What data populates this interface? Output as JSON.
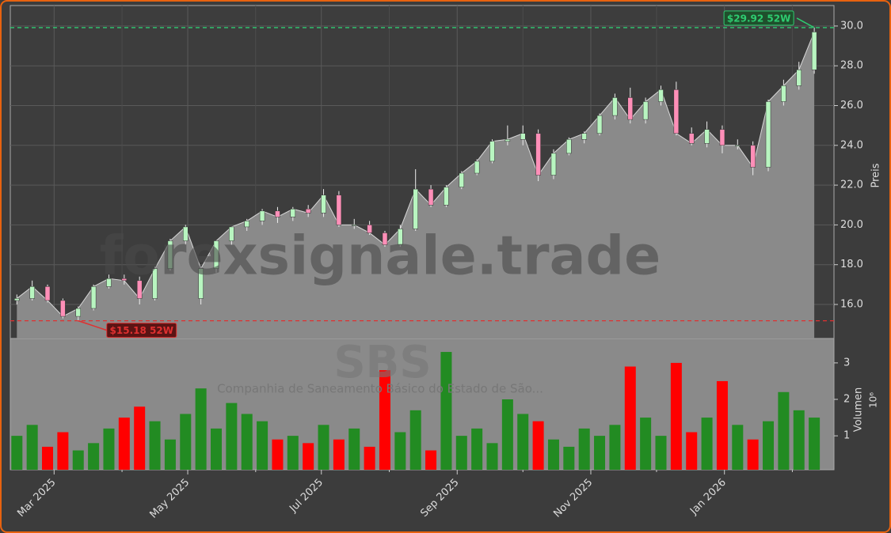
{
  "chart_data": {
    "type": "candlestick",
    "watermark": "forexsignale.trade",
    "symbol": "SBS",
    "company": "Companhia de Saneamento Básico do Estado de São...",
    "ylabel": "Preis",
    "y2label": "Volumen",
    "volume_multiplier": "10⁶",
    "x": [
      "2025-02-12",
      "2025-02-19",
      "2025-02-26",
      "2025-03-05",
      "2025-03-12",
      "2025-03-19",
      "2025-03-26",
      "2025-04-02",
      "2025-04-09",
      "2025-04-16",
      "2025-04-23",
      "2025-04-30",
      "2025-05-07",
      "2025-05-14",
      "2025-05-21",
      "2025-05-28",
      "2025-06-04",
      "2025-06-11",
      "2025-06-18",
      "2025-06-25",
      "2025-07-02",
      "2025-07-09",
      "2025-07-16",
      "2025-07-23",
      "2025-07-30",
      "2025-08-06",
      "2025-08-13",
      "2025-08-20",
      "2025-08-27",
      "2025-09-03",
      "2025-09-10",
      "2025-09-17",
      "2025-09-24",
      "2025-10-01",
      "2025-10-08",
      "2025-10-15",
      "2025-10-22",
      "2025-10-29",
      "2025-11-05",
      "2025-11-12",
      "2025-11-19",
      "2025-11-26",
      "2025-12-03",
      "2025-12-10",
      "2025-12-17",
      "2025-12-24",
      "2025-12-31",
      "2026-01-07",
      "2026-01-14",
      "2026-01-21",
      "2026-01-28",
      "2026-02-04",
      "2026-02-11"
    ],
    "open": [
      16.2,
      16.3,
      16.9,
      16.2,
      15.4,
      15.8,
      16.9,
      17.3,
      17.2,
      16.3,
      17.8,
      19.2,
      16.3,
      17.8,
      19.2,
      19.9,
      20.2,
      20.7,
      20.4,
      20.8,
      20.6,
      21.5,
      20.0,
      20.0,
      19.6,
      19.0,
      19.8,
      21.8,
      21.0,
      21.9,
      22.6,
      23.2,
      24.2,
      24.3,
      24.6,
      22.5,
      23.6,
      24.3,
      24.6,
      25.5,
      26.4,
      25.3,
      26.2,
      26.8,
      24.6,
      24.1,
      24.8,
      24.0,
      24.0,
      22.9,
      26.2,
      27.0,
      27.8
    ],
    "high": [
      16.5,
      17.2,
      17.0,
      16.3,
      15.9,
      17.0,
      17.5,
      17.5,
      17.4,
      17.9,
      19.3,
      20.0,
      17.9,
      19.1,
      19.9,
      20.3,
      20.8,
      20.9,
      20.9,
      21.0,
      21.8,
      21.7,
      20.3,
      20.2,
      19.7,
      20.0,
      22.8,
      22.0,
      22.0,
      22.7,
      23.3,
      24.3,
      25.0,
      25.0,
      24.8,
      23.8,
      24.4,
      24.7,
      25.6,
      26.6,
      26.9,
      26.4,
      27.0,
      27.2,
      24.9,
      25.2,
      25.0,
      24.3,
      24.2,
      26.3,
      27.3,
      28.2,
      29.92
    ],
    "low": [
      16.0,
      16.2,
      16.1,
      15.3,
      15.18,
      15.7,
      16.8,
      17.0,
      16.0,
      16.2,
      17.7,
      19.0,
      16.0,
      17.6,
      19.0,
      19.7,
      20.0,
      20.1,
      20.2,
      20.4,
      20.4,
      19.9,
      19.8,
      19.5,
      18.9,
      18.9,
      19.7,
      20.9,
      20.9,
      21.8,
      22.5,
      23.1,
      24.0,
      24.0,
      22.2,
      22.3,
      23.5,
      24.1,
      24.5,
      25.3,
      25.1,
      25.1,
      26.0,
      24.5,
      24.0,
      23.9,
      23.6,
      23.8,
      22.5,
      22.7,
      26.0,
      26.8,
      27.6
    ],
    "close": [
      16.3,
      16.9,
      16.2,
      15.4,
      15.8,
      16.9,
      17.3,
      17.2,
      16.3,
      17.8,
      19.2,
      19.9,
      17.8,
      19.2,
      19.9,
      20.2,
      20.7,
      20.4,
      20.8,
      20.6,
      21.5,
      20.0,
      20.0,
      19.6,
      19.0,
      19.8,
      21.8,
      21.0,
      21.9,
      22.6,
      23.2,
      24.2,
      24.3,
      24.6,
      22.5,
      23.6,
      24.3,
      24.6,
      25.5,
      26.4,
      25.3,
      26.2,
      26.8,
      24.6,
      24.1,
      24.8,
      24.0,
      24.0,
      22.9,
      26.2,
      27.0,
      27.8,
      29.7
    ],
    "volumes": [
      1.0,
      1.3,
      0.7,
      1.1,
      0.6,
      0.8,
      1.2,
      1.5,
      1.8,
      1.4,
      0.9,
      1.6,
      2.3,
      1.2,
      1.9,
      1.6,
      1.4,
      0.9,
      1.0,
      0.8,
      1.3,
      0.9,
      1.2,
      0.7,
      2.8,
      1.1,
      1.7,
      0.6,
      3.3,
      1.0,
      1.2,
      0.8,
      2.0,
      1.6,
      1.4,
      0.9,
      0.7,
      1.2,
      1.0,
      1.3,
      2.9,
      1.5,
      1.0,
      3.0,
      1.1,
      1.5,
      2.5,
      1.3,
      0.9,
      1.4,
      2.2,
      1.7,
      1.5
    ],
    "up_color": "#228b22",
    "down_color": "#ff0000",
    "candle_up": "#b8f5c0",
    "candle_down": "#ff8fb8",
    "area_color": "#8a8a8a",
    "ylim": [
      14.29,
      31.03
    ],
    "yticks": [
      {
        "value": 16,
        "label": "16.0"
      },
      {
        "value": 18,
        "label": "18.0"
      },
      {
        "value": 20,
        "label": "20.0"
      },
      {
        "value": 22,
        "label": "22.0"
      },
      {
        "value": 24,
        "label": "24.0"
      },
      {
        "value": 26,
        "label": "26.0"
      },
      {
        "value": 28,
        "label": "28.0"
      },
      {
        "value": 30,
        "label": "30.0"
      }
    ],
    "y2lim": [
      0.07,
      3.67
    ],
    "y2ticks": [
      1,
      2,
      3
    ],
    "xlim": [
      "2025-02-09",
      "2026-02-20"
    ],
    "xticks": [
      {
        "value": "2025-03-01",
        "label": "Mar 2025"
      },
      {
        "value": "2025-05-01",
        "label": "May 2025"
      },
      {
        "value": "2025-07-01",
        "label": "Jul 2025"
      },
      {
        "value": "2025-09-01",
        "label": "Sep 2025"
      },
      {
        "value": "2025-11-01",
        "label": "Nov 2025"
      },
      {
        "value": "2026-01-01",
        "label": "Jan 2026"
      }
    ],
    "xminor": [
      "2025-04-01",
      "2025-06-01",
      "2025-08-01",
      "2025-10-01",
      "2025-12-01",
      "2026-02-01"
    ],
    "grid": true,
    "annotations": [
      {
        "text": "$29.92 52W",
        "value": 29.92,
        "x": "2026-02-11",
        "color": "#2ecc71"
      },
      {
        "text": "$15.18 52W",
        "value": 15.18,
        "x": "2025-03-12",
        "color": "#e03030"
      }
    ]
  }
}
